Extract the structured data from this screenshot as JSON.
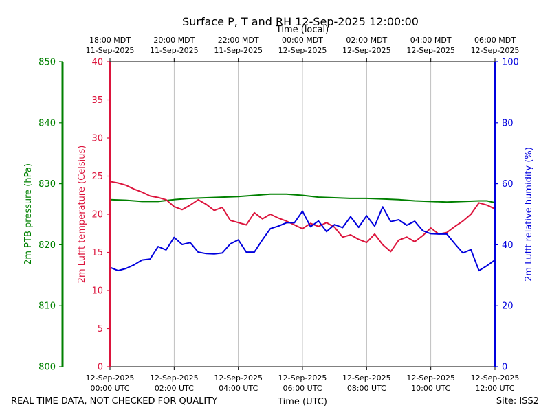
{
  "chart_data": {
    "type": "line",
    "title": "Surface P, T and RH 12-Sep-2025 12:00:00",
    "xlabel": "Time (UTC)",
    "top_xlabel": "Time (local)",
    "footer_left": "REAL TIME DATA, NOT CHECKED FOR QUALITY",
    "footer_right": "Site: ISS2",
    "x_range_hours": [
      0,
      12
    ],
    "grid": "vertical lines at every 2-hour tick",
    "bottom_ticks": [
      {
        "hour": 0,
        "l1": "12-Sep-2025",
        "l2": "00:00 UTC"
      },
      {
        "hour": 2,
        "l1": "12-Sep-2025",
        "l2": "02:00 UTC"
      },
      {
        "hour": 4,
        "l1": "12-Sep-2025",
        "l2": "04:00 UTC"
      },
      {
        "hour": 6,
        "l1": "12-Sep-2025",
        "l2": "06:00 UTC"
      },
      {
        "hour": 8,
        "l1": "12-Sep-2025",
        "l2": "08:00 UTC"
      },
      {
        "hour": 10,
        "l1": "12-Sep-2025",
        "l2": "10:00 UTC"
      },
      {
        "hour": 12,
        "l1": "12-Sep-2025",
        "l2": "12:00 UTC"
      }
    ],
    "top_ticks": [
      {
        "hour": 0,
        "l1": "18:00 MDT",
        "l2": "11-Sep-2025"
      },
      {
        "hour": 2,
        "l1": "20:00 MDT",
        "l2": "11-Sep-2025"
      },
      {
        "hour": 4,
        "l1": "22:00 MDT",
        "l2": "11-Sep-2025"
      },
      {
        "hour": 6,
        "l1": "00:00 MDT",
        "l2": "12-Sep-2025"
      },
      {
        "hour": 8,
        "l1": "02:00 MDT",
        "l2": "12-Sep-2025"
      },
      {
        "hour": 10,
        "l1": "04:00 MDT",
        "l2": "12-Sep-2025"
      },
      {
        "hour": 12,
        "l1": "06:00 MDT",
        "l2": "12-Sep-2025"
      }
    ],
    "axes": {
      "pressure": {
        "label": "2m PTB pressure (hPa)",
        "range": [
          800,
          850
        ],
        "ticks": [
          800,
          810,
          820,
          830,
          840,
          850
        ],
        "color": "#008000"
      },
      "temperature": {
        "label": "2m Lufft temperature (Celsius)",
        "range": [
          0,
          40
        ],
        "ticks": [
          0,
          5,
          10,
          15,
          20,
          25,
          30,
          35,
          40
        ],
        "color": "#dc143c"
      },
      "humidity": {
        "label": "2m Lufft relative humidity (%)",
        "range": [
          0,
          100
        ],
        "ticks": [
          0,
          20,
          40,
          60,
          80,
          100
        ],
        "color": "#0000dd"
      }
    },
    "series": [
      {
        "name": "2m PTB pressure (hPa)",
        "axis": "pressure",
        "color": "#008000",
        "x": [
          0,
          0.5,
          1,
          1.5,
          2,
          2.5,
          3,
          3.5,
          4,
          4.5,
          5,
          5.5,
          6,
          6.5,
          7,
          7.5,
          8,
          8.5,
          9,
          9.5,
          10,
          10.5,
          11,
          11.5,
          11.75,
          12
        ],
        "y": [
          827.4,
          827.3,
          827.1,
          827.1,
          827.4,
          827.6,
          827.7,
          827.8,
          827.9,
          828.1,
          828.3,
          828.3,
          828.1,
          827.8,
          827.7,
          827.6,
          827.6,
          827.5,
          827.4,
          827.2,
          827.1,
          827.0,
          827.1,
          827.2,
          827.2,
          826.9
        ]
      },
      {
        "name": "2m Lufft temperature (Celsius)",
        "axis": "temperature",
        "color": "#dc143c",
        "x": [
          0,
          0.25,
          0.5,
          0.75,
          1,
          1.25,
          1.5,
          1.75,
          2,
          2.25,
          2.5,
          2.75,
          3,
          3.25,
          3.5,
          3.75,
          4,
          4.25,
          4.5,
          4.75,
          5,
          5.25,
          5.5,
          5.75,
          6,
          6.25,
          6.5,
          6.75,
          7,
          7.25,
          7.5,
          7.75,
          8,
          8.25,
          8.5,
          8.75,
          9,
          9.25,
          9.5,
          9.75,
          10,
          10.25,
          10.5,
          10.75,
          11,
          11.25,
          11.5,
          11.75,
          12
        ],
        "y": [
          24.3,
          24.1,
          23.8,
          23.3,
          22.9,
          22.4,
          22.2,
          21.9,
          21.0,
          20.6,
          21.2,
          21.9,
          21.3,
          20.5,
          20.9,
          19.2,
          18.9,
          18.6,
          20.2,
          19.4,
          20.0,
          19.5,
          19.1,
          18.6,
          18.1,
          18.8,
          18.4,
          18.9,
          18.3,
          17.0,
          17.3,
          16.7,
          16.3,
          17.4,
          16.0,
          15.1,
          16.6,
          17.0,
          16.4,
          17.2,
          18.2,
          17.4,
          17.6,
          18.4,
          19.1,
          20.0,
          21.5,
          21.2,
          20.7
        ]
      },
      {
        "name": "2m Lufft relative humidity (%)",
        "axis": "humidity",
        "color": "#0000dd",
        "x": [
          0,
          0.25,
          0.5,
          0.75,
          1,
          1.25,
          1.5,
          1.75,
          2,
          2.25,
          2.5,
          2.75,
          3,
          3.25,
          3.5,
          3.75,
          4,
          4.25,
          4.5,
          4.75,
          5,
          5.25,
          5.5,
          5.75,
          6,
          6.25,
          6.5,
          6.75,
          7,
          7.25,
          7.5,
          7.75,
          8,
          8.25,
          8.5,
          8.75,
          9,
          9.25,
          9.5,
          9.75,
          10,
          10.25,
          10.5,
          10.75,
          11,
          11.25,
          11.5,
          11.75,
          12
        ],
        "y": [
          32.6,
          31.5,
          32.2,
          33.4,
          35.0,
          35.3,
          39.4,
          38.3,
          42.4,
          40.1,
          40.7,
          37.6,
          37.1,
          37.0,
          37.3,
          40.3,
          41.6,
          37.6,
          37.6,
          41.6,
          45.3,
          46.1,
          47.2,
          47.2,
          51.0,
          45.9,
          47.8,
          44.3,
          46.6,
          45.6,
          49.2,
          45.7,
          49.5,
          46.1,
          52.4,
          47.6,
          48.2,
          46.4,
          47.7,
          44.6,
          43.6,
          43.5,
          43.5,
          40.3,
          37.3,
          38.4,
          31.5,
          33.1,
          35.0
        ]
      }
    ]
  }
}
